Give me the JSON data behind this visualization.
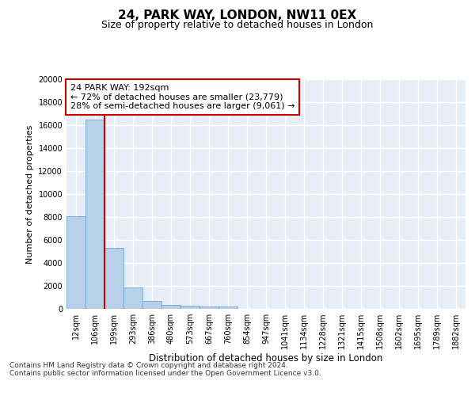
{
  "title1": "24, PARK WAY, LONDON, NW11 0EX",
  "title2": "Size of property relative to detached houses in London",
  "xlabel": "Distribution of detached houses by size in London",
  "ylabel": "Number of detached properties",
  "categories": [
    "12sqm",
    "106sqm",
    "199sqm",
    "293sqm",
    "386sqm",
    "480sqm",
    "573sqm",
    "667sqm",
    "760sqm",
    "854sqm",
    "947sqm",
    "1041sqm",
    "1134sqm",
    "1228sqm",
    "1321sqm",
    "1415sqm",
    "1508sqm",
    "1602sqm",
    "1695sqm",
    "1789sqm",
    "1882sqm"
  ],
  "values": [
    8100,
    16500,
    5300,
    1850,
    700,
    370,
    280,
    210,
    210,
    0,
    0,
    0,
    0,
    0,
    0,
    0,
    0,
    0,
    0,
    0,
    0
  ],
  "bar_color": "#b8d0e8",
  "bar_edge_color": "#5b9bd5",
  "vline_color": "#cc0000",
  "annotation_text": "24 PARK WAY: 192sqm\n← 72% of detached houses are smaller (23,779)\n28% of semi-detached houses are larger (9,061) →",
  "annotation_box_color": "#ffffff",
  "annotation_box_edge": "#cc0000",
  "ylim": [
    0,
    20000
  ],
  "yticks": [
    0,
    2000,
    4000,
    6000,
    8000,
    10000,
    12000,
    14000,
    16000,
    18000,
    20000
  ],
  "footer1": "Contains HM Land Registry data © Crown copyright and database right 2024.",
  "footer2": "Contains public sector information licensed under the Open Government Licence v3.0.",
  "bg_color": "#e8eef5",
  "grid_color": "#ffffff",
  "fig_bg": "#ffffff"
}
